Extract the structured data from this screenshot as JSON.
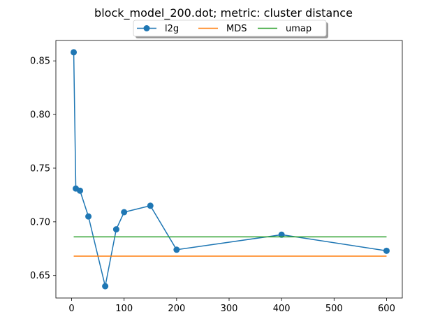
{
  "chart_data": {
    "type": "line",
    "title": "block_model_200.dot; metric: cluster distance",
    "xlabel": "",
    "ylabel": "",
    "xlim": [
      -30,
      630
    ],
    "ylim": [
      0.629,
      0.869
    ],
    "xticks": [
      0,
      100,
      200,
      300,
      400,
      500,
      600
    ],
    "xtick_labels": [
      "0",
      "100",
      "200",
      "300",
      "400",
      "500",
      "600"
    ],
    "yticks": [
      0.65,
      0.7,
      0.75,
      0.8,
      0.85
    ],
    "ytick_labels": [
      "0.65",
      "0.70",
      "0.75",
      "0.80",
      "0.85"
    ],
    "grid": false,
    "legend_position": "top-center",
    "series": [
      {
        "name": "l2g",
        "color": "#1f77b4",
        "marker": "circle",
        "x": [
          4,
          8,
          16,
          32,
          64,
          85,
          100,
          150,
          200,
          400,
          600
        ],
        "y": [
          0.858,
          0.731,
          0.729,
          0.705,
          0.64,
          0.693,
          0.709,
          0.715,
          0.674,
          0.688,
          0.673
        ]
      },
      {
        "name": "MDS",
        "color": "#ff7f0e",
        "marker": "none",
        "x": [
          4,
          600
        ],
        "y": [
          0.668,
          0.668
        ]
      },
      {
        "name": "umap",
        "color": "#2ca02c",
        "marker": "none",
        "x": [
          4,
          600
        ],
        "y": [
          0.686,
          0.686
        ]
      }
    ]
  }
}
